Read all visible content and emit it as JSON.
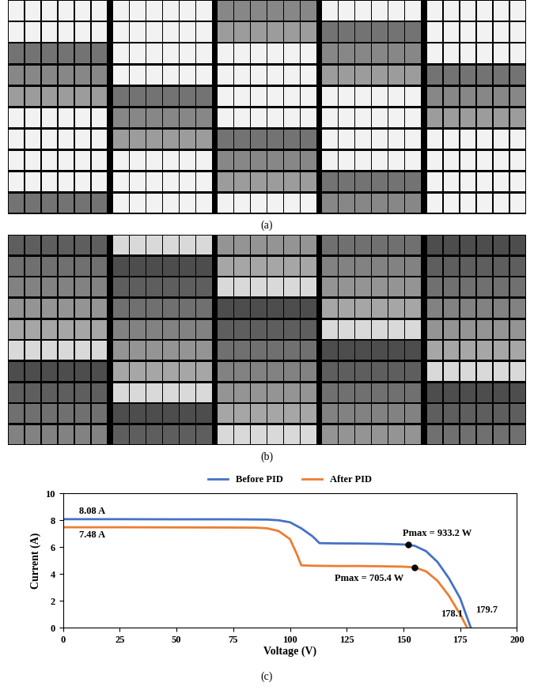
{
  "figure": {
    "panel_labels": [
      "(a)",
      "(b)",
      "(c)"
    ]
  },
  "chart_data": {
    "type": "line",
    "x_label": "Voltage (V)",
    "y_label": "Current (A)",
    "xlim": [
      0,
      200
    ],
    "xticks": [
      0,
      25,
      50,
      75,
      100,
      125,
      150,
      175,
      200
    ],
    "ylim": [
      0,
      10
    ],
    "yticks": [
      0,
      2,
      4,
      6,
      8,
      10
    ],
    "grid": false,
    "legend": "upper center",
    "series": [
      {
        "name": "Before PID",
        "color": "#4472c4",
        "x": [
          0,
          25,
          50,
          75,
          90,
          95,
          100,
          105,
          110,
          113,
          120,
          130,
          140,
          150,
          155,
          160,
          165,
          170,
          175,
          179.7
        ],
        "values": [
          8.08,
          8.08,
          8.07,
          8.07,
          8.05,
          8.0,
          7.85,
          7.4,
          6.8,
          6.3,
          6.28,
          6.27,
          6.25,
          6.2,
          6.1,
          5.7,
          4.9,
          3.7,
          2.2,
          0
        ]
      },
      {
        "name": "After PID",
        "color": "#ed7d31",
        "x": [
          0,
          25,
          50,
          75,
          85,
          90,
          95,
          100,
          103,
          105,
          110,
          120,
          130,
          140,
          150,
          155,
          160,
          165,
          170,
          175,
          178.1
        ],
        "values": [
          7.48,
          7.48,
          7.47,
          7.46,
          7.45,
          7.4,
          7.2,
          6.6,
          5.5,
          4.65,
          4.62,
          4.6,
          4.6,
          4.58,
          4.55,
          4.5,
          4.2,
          3.5,
          2.4,
          1.0,
          0
        ]
      }
    ],
    "points": [
      {
        "x": 152,
        "y": 6.18,
        "label": "Pmax = 933.2 W",
        "color": "#000000"
      },
      {
        "x": 155,
        "y": 4.5,
        "label": "Pmax = 705.4 W",
        "color": "#000000"
      }
    ],
    "annotations": [
      {
        "text": "8.08 A",
        "x": 0,
        "y": 8.08
      },
      {
        "text": "7.48 A",
        "x": 0,
        "y": 7.48
      },
      {
        "text": "178.1",
        "x": 178.1,
        "y": 0
      },
      {
        "text": "179.7",
        "x": 179.7,
        "y": 0
      }
    ]
  }
}
